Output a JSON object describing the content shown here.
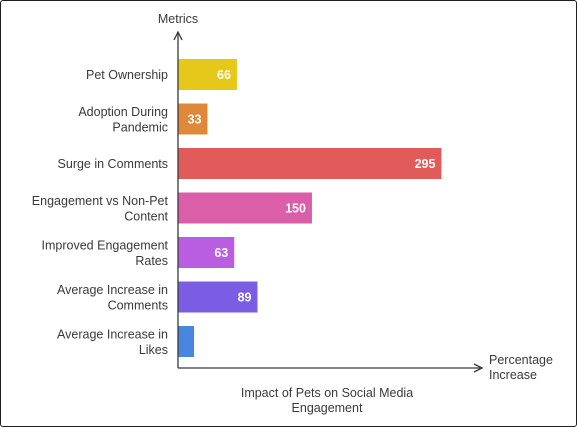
{
  "chart_data": {
    "type": "bar",
    "orientation": "horizontal",
    "title": "Impact of Pets on Social Media Engagement",
    "xlabel": "Percentage Increase",
    "ylabel": "Metrics",
    "categories": [
      "Pet Ownership",
      "Adoption During Pandemic",
      "Surge in Comments",
      "Engagement vs Non-Pet Content",
      "Improved Engagement Rates",
      "Average Increase in Comments",
      "Average Increase in Likes"
    ],
    "values": [
      66,
      33,
      295,
      150,
      63,
      89,
      18
    ],
    "value_labels": [
      "66",
      "33",
      "295",
      "150",
      "63",
      "89",
      ""
    ],
    "colors": [
      "#e6c81a",
      "#e0883a",
      "#e15b5b",
      "#da5fa8",
      "#b95ee0",
      "#7a5de3",
      "#4a86e0"
    ],
    "grid": false,
    "legend": "none"
  }
}
